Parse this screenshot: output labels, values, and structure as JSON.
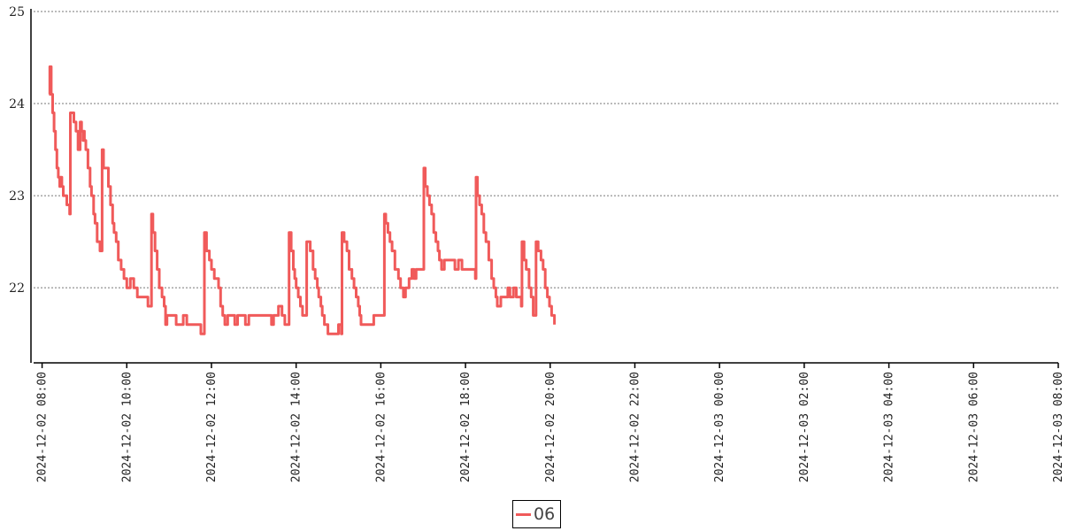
{
  "chart_data": {
    "type": "line",
    "title": "",
    "xlabel": "",
    "ylabel": "",
    "xlim": [
      "2024-12-02 07:48",
      "2024-12-03 08:00"
    ],
    "ylim": [
      21.3,
      25
    ],
    "yticks": [
      "22",
      "23",
      "24",
      "25"
    ],
    "xticks": [
      {
        "t": "2024-12-02 08:00",
        "label": "2024-12-02 08:00"
      },
      {
        "t": "2024-12-02 10:00",
        "label": "2024-12-02 10:00"
      },
      {
        "t": "2024-12-02 12:00",
        "label": "2024-12-02 12:00"
      },
      {
        "t": "2024-12-02 14:00",
        "label": "2024-12-02 14:00"
      },
      {
        "t": "2024-12-02 16:00",
        "label": "2024-12-02 16:00"
      },
      {
        "t": "2024-12-02 18:00",
        "label": "2024-12-02 18:00"
      },
      {
        "t": "2024-12-02 20:00",
        "label": "2024-12-02 20:00"
      },
      {
        "t": "2024-12-02 22:00",
        "label": "2024-12-02 22:00"
      },
      {
        "t": "2024-12-03 00:00",
        "label": "2024-12-03 00:00"
      },
      {
        "t": "2024-12-03 02:00",
        "label": "2024-12-03 02:00"
      },
      {
        "t": "2024-12-03 04:00",
        "label": "2024-12-03 04:00"
      },
      {
        "t": "2024-12-03 06:00",
        "label": "2024-12-03 06:00"
      },
      {
        "t": "2024-12-03 08:00",
        "label": "2024-12-03 08:00"
      }
    ],
    "grid": "horizontal dotted",
    "legend_position": "bottom-center",
    "series": [
      {
        "name": "06",
        "color": "#f05a5a",
        "points": [
          [
            "2024-12-02 08:10",
            24.1
          ],
          [
            "2024-12-02 08:11",
            24.4
          ],
          [
            "2024-12-02 08:13",
            24.1
          ],
          [
            "2024-12-02 08:15",
            23.9
          ],
          [
            "2024-12-02 08:17",
            23.7
          ],
          [
            "2024-12-02 08:19",
            23.5
          ],
          [
            "2024-12-02 08:21",
            23.3
          ],
          [
            "2024-12-02 08:23",
            23.2
          ],
          [
            "2024-12-02 08:25",
            23.1
          ],
          [
            "2024-12-02 08:26",
            23.2
          ],
          [
            "2024-12-02 08:28",
            23.1
          ],
          [
            "2024-12-02 08:30",
            23.0
          ],
          [
            "2024-12-02 08:35",
            22.9
          ],
          [
            "2024-12-02 08:39",
            22.8
          ],
          [
            "2024-12-02 08:40",
            23.9
          ],
          [
            "2024-12-02 08:45",
            23.8
          ],
          [
            "2024-12-02 08:48",
            23.7
          ],
          [
            "2024-12-02 08:51",
            23.5
          ],
          [
            "2024-12-02 08:54",
            23.8
          ],
          [
            "2024-12-02 08:56",
            23.7
          ],
          [
            "2024-12-02 08:58",
            23.6
          ],
          [
            "2024-12-02 08:59",
            23.7
          ],
          [
            "2024-12-02 09:00",
            23.6
          ],
          [
            "2024-12-02 09:02",
            23.5
          ],
          [
            "2024-12-02 09:05",
            23.3
          ],
          [
            "2024-12-02 09:08",
            23.1
          ],
          [
            "2024-12-02 09:10",
            23.0
          ],
          [
            "2024-12-02 09:13",
            22.8
          ],
          [
            "2024-12-02 09:15",
            22.7
          ],
          [
            "2024-12-02 09:18",
            22.5
          ],
          [
            "2024-12-02 09:22",
            22.4
          ],
          [
            "2024-12-02 09:24",
            22.4
          ],
          [
            "2024-12-02 09:25",
            23.5
          ],
          [
            "2024-12-02 09:27",
            23.3
          ],
          [
            "2024-12-02 09:30",
            23.3
          ],
          [
            "2024-12-02 09:34",
            23.1
          ],
          [
            "2024-12-02 09:37",
            22.9
          ],
          [
            "2024-12-02 09:40",
            22.7
          ],
          [
            "2024-12-02 09:42",
            22.6
          ],
          [
            "2024-12-02 09:45",
            22.5
          ],
          [
            "2024-12-02 09:48",
            22.3
          ],
          [
            "2024-12-02 09:52",
            22.2
          ],
          [
            "2024-12-02 09:56",
            22.1
          ],
          [
            "2024-12-02 10:00",
            22.0
          ],
          [
            "2024-12-02 10:05",
            22.1
          ],
          [
            "2024-12-02 10:10",
            22.0
          ],
          [
            "2024-12-02 10:15",
            21.9
          ],
          [
            "2024-12-02 10:30",
            21.8
          ],
          [
            "2024-12-02 10:34",
            21.8
          ],
          [
            "2024-12-02 10:35",
            22.8
          ],
          [
            "2024-12-02 10:37",
            22.6
          ],
          [
            "2024-12-02 10:40",
            22.4
          ],
          [
            "2024-12-02 10:43",
            22.2
          ],
          [
            "2024-12-02 10:46",
            22.0
          ],
          [
            "2024-12-02 10:50",
            21.9
          ],
          [
            "2024-12-02 10:53",
            21.8
          ],
          [
            "2024-12-02 10:55",
            21.6
          ],
          [
            "2024-12-02 10:57",
            21.7
          ],
          [
            "2024-12-02 11:10",
            21.6
          ],
          [
            "2024-12-02 11:20",
            21.7
          ],
          [
            "2024-12-02 11:25",
            21.6
          ],
          [
            "2024-12-02 11:40",
            21.6
          ],
          [
            "2024-12-02 11:45",
            21.5
          ],
          [
            "2024-12-02 11:49",
            21.5
          ],
          [
            "2024-12-02 11:50",
            22.6
          ],
          [
            "2024-12-02 11:53",
            22.4
          ],
          [
            "2024-12-02 11:57",
            22.3
          ],
          [
            "2024-12-02 12:00",
            22.2
          ],
          [
            "2024-12-02 12:04",
            22.1
          ],
          [
            "2024-12-02 12:10",
            22.0
          ],
          [
            "2024-12-02 12:13",
            21.8
          ],
          [
            "2024-12-02 12:16",
            21.7
          ],
          [
            "2024-12-02 12:19",
            21.6
          ],
          [
            "2024-12-02 12:23",
            21.7
          ],
          [
            "2024-12-02 12:33",
            21.6
          ],
          [
            "2024-12-02 12:37",
            21.7
          ],
          [
            "2024-12-02 12:48",
            21.6
          ],
          [
            "2024-12-02 12:53",
            21.7
          ],
          [
            "2024-12-02 13:20",
            21.7
          ],
          [
            "2024-12-02 13:25",
            21.6
          ],
          [
            "2024-12-02 13:28",
            21.7
          ],
          [
            "2024-12-02 13:35",
            21.8
          ],
          [
            "2024-12-02 13:40",
            21.7
          ],
          [
            "2024-12-02 13:44",
            21.6
          ],
          [
            "2024-12-02 13:49",
            21.6
          ],
          [
            "2024-12-02 13:50",
            22.6
          ],
          [
            "2024-12-02 13:53",
            22.4
          ],
          [
            "2024-12-02 13:56",
            22.2
          ],
          [
            "2024-12-02 13:58",
            22.1
          ],
          [
            "2024-12-02 14:00",
            22.0
          ],
          [
            "2024-12-02 14:03",
            21.9
          ],
          [
            "2024-12-02 14:06",
            21.8
          ],
          [
            "2024-12-02 14:09",
            21.7
          ],
          [
            "2024-12-02 14:14",
            21.7
          ],
          [
            "2024-12-02 14:15",
            22.5
          ],
          [
            "2024-12-02 14:20",
            22.4
          ],
          [
            "2024-12-02 14:24",
            22.2
          ],
          [
            "2024-12-02 14:27",
            22.1
          ],
          [
            "2024-12-02 14:30",
            22.0
          ],
          [
            "2024-12-02 14:32",
            21.9
          ],
          [
            "2024-12-02 14:35",
            21.8
          ],
          [
            "2024-12-02 14:37",
            21.7
          ],
          [
            "2024-12-02 14:40",
            21.6
          ],
          [
            "2024-12-02 14:45",
            21.5
          ],
          [
            "2024-12-02 14:55",
            21.5
          ],
          [
            "2024-12-02 15:00",
            21.6
          ],
          [
            "2024-12-02 15:04",
            21.5
          ],
          [
            "2024-12-02 15:05",
            22.6
          ],
          [
            "2024-12-02 15:08",
            22.5
          ],
          [
            "2024-12-02 15:12",
            22.4
          ],
          [
            "2024-12-02 15:15",
            22.2
          ],
          [
            "2024-12-02 15:19",
            22.1
          ],
          [
            "2024-12-02 15:22",
            22.0
          ],
          [
            "2024-12-02 15:25",
            21.9
          ],
          [
            "2024-12-02 15:28",
            21.8
          ],
          [
            "2024-12-02 15:30",
            21.7
          ],
          [
            "2024-12-02 15:32",
            21.6
          ],
          [
            "2024-12-02 15:45",
            21.6
          ],
          [
            "2024-12-02 15:50",
            21.7
          ],
          [
            "2024-12-02 16:04",
            21.7
          ],
          [
            "2024-12-02 16:05",
            22.8
          ],
          [
            "2024-12-02 16:07",
            22.7
          ],
          [
            "2024-12-02 16:10",
            22.6
          ],
          [
            "2024-12-02 16:13",
            22.5
          ],
          [
            "2024-12-02 16:16",
            22.4
          ],
          [
            "2024-12-02 16:20",
            22.2
          ],
          [
            "2024-12-02 16:25",
            22.1
          ],
          [
            "2024-12-02 16:28",
            22.0
          ],
          [
            "2024-12-02 16:32",
            21.9
          ],
          [
            "2024-12-02 16:35",
            22.0
          ],
          [
            "2024-12-02 16:40",
            22.1
          ],
          [
            "2024-12-02 16:44",
            22.2
          ],
          [
            "2024-12-02 16:47",
            22.1
          ],
          [
            "2024-12-02 16:50",
            22.2
          ],
          [
            "2024-12-02 17:00",
            22.2
          ],
          [
            "2024-12-02 17:01",
            23.3
          ],
          [
            "2024-12-02 17:03",
            23.1
          ],
          [
            "2024-12-02 17:06",
            23.0
          ],
          [
            "2024-12-02 17:09",
            22.9
          ],
          [
            "2024-12-02 17:12",
            22.8
          ],
          [
            "2024-12-02 17:15",
            22.6
          ],
          [
            "2024-12-02 17:18",
            22.5
          ],
          [
            "2024-12-02 17:21",
            22.4
          ],
          [
            "2024-12-02 17:23",
            22.3
          ],
          [
            "2024-12-02 17:26",
            22.2
          ],
          [
            "2024-12-02 17:30",
            22.3
          ],
          [
            "2024-12-02 17:40",
            22.3
          ],
          [
            "2024-12-02 17:45",
            22.2
          ],
          [
            "2024-12-02 17:50",
            22.3
          ],
          [
            "2024-12-02 17:55",
            22.2
          ],
          [
            "2024-12-02 18:10",
            22.2
          ],
          [
            "2024-12-02 18:14",
            22.1
          ],
          [
            "2024-12-02 18:15",
            23.2
          ],
          [
            "2024-12-02 18:17",
            23.0
          ],
          [
            "2024-12-02 18:20",
            22.9
          ],
          [
            "2024-12-02 18:23",
            22.8
          ],
          [
            "2024-12-02 18:26",
            22.6
          ],
          [
            "2024-12-02 18:29",
            22.5
          ],
          [
            "2024-12-02 18:33",
            22.3
          ],
          [
            "2024-12-02 18:37",
            22.1
          ],
          [
            "2024-12-02 18:40",
            22.0
          ],
          [
            "2024-12-02 18:43",
            21.9
          ],
          [
            "2024-12-02 18:45",
            21.8
          ],
          [
            "2024-12-02 18:50",
            21.9
          ],
          [
            "2024-12-02 19:00",
            22.0
          ],
          [
            "2024-12-02 19:03",
            21.9
          ],
          [
            "2024-12-02 19:08",
            22.0
          ],
          [
            "2024-12-02 19:12",
            21.9
          ],
          [
            "2024-12-02 19:19",
            21.8
          ],
          [
            "2024-12-02 19:20",
            22.5
          ],
          [
            "2024-12-02 19:23",
            22.3
          ],
          [
            "2024-12-02 19:26",
            22.2
          ],
          [
            "2024-12-02 19:30",
            22.0
          ],
          [
            "2024-12-02 19:33",
            21.9
          ],
          [
            "2024-12-02 19:36",
            21.7
          ],
          [
            "2024-12-02 19:39",
            21.7
          ],
          [
            "2024-12-02 19:40",
            22.5
          ],
          [
            "2024-12-02 19:43",
            22.4
          ],
          [
            "2024-12-02 19:47",
            22.3
          ],
          [
            "2024-12-02 19:50",
            22.2
          ],
          [
            "2024-12-02 19:53",
            22.0
          ],
          [
            "2024-12-02 19:56",
            21.9
          ],
          [
            "2024-12-02 19:59",
            21.8
          ],
          [
            "2024-12-02 20:02",
            21.7
          ],
          [
            "2024-12-02 20:06",
            21.6
          ]
        ]
      }
    ]
  }
}
